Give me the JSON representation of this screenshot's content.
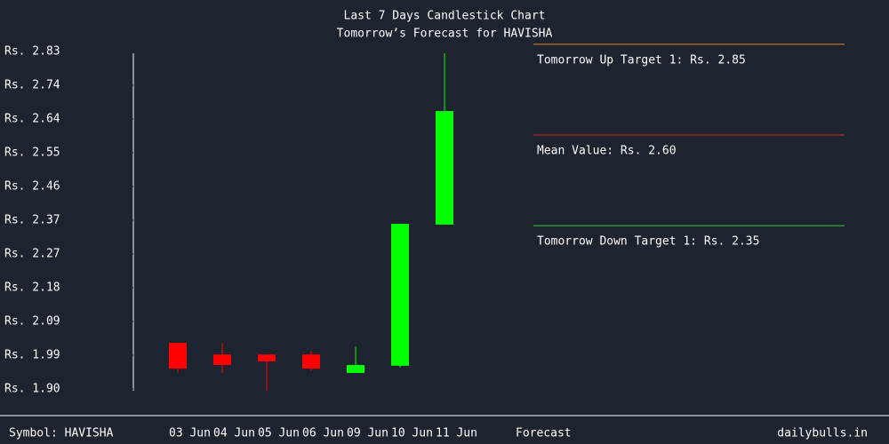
{
  "chart_data": {
    "type": "candlestick",
    "title": "Last 7 Days Candlestick Chart",
    "subtitle": "Tomorrow’s Forecast for HAVISHA",
    "categories": [
      "03 Jun",
      "04 Jun",
      "05 Jun",
      "06 Jun",
      "09 Jun",
      "10 Jun",
      "11 Jun"
    ],
    "open": [
      2.027,
      1.995,
      1.995,
      1.995,
      1.944,
      1.964,
      2.353
    ],
    "high": [
      2.027,
      2.027,
      1.995,
      2.005,
      2.017,
      2.355,
      2.825
    ],
    "low": [
      1.946,
      1.944,
      1.895,
      1.951,
      1.944,
      1.959,
      2.353
    ],
    "close": [
      1.956,
      1.966,
      1.976,
      1.956,
      1.966,
      2.355,
      2.666
    ],
    "up_color": "#00ff00",
    "down_color": "#ff0000",
    "ylim": [
      1.9,
      2.83
    ],
    "yticks": [
      {
        "value": 2.83,
        "label": "Rs. 2.83"
      },
      {
        "value": 2.737,
        "label": "Rs. 2.74"
      },
      {
        "value": 2.644,
        "label": "Rs. 2.64"
      },
      {
        "value": 2.551,
        "label": "Rs. 2.55"
      },
      {
        "value": 2.458,
        "label": "Rs. 2.46"
      },
      {
        "value": 2.365,
        "label": "Rs. 2.37"
      },
      {
        "value": 2.272,
        "label": "Rs. 2.27"
      },
      {
        "value": 2.179,
        "label": "Rs. 2.18"
      },
      {
        "value": 2.086,
        "label": "Rs. 2.09"
      },
      {
        "value": 1.993,
        "label": "Rs. 1.99"
      },
      {
        "value": 1.9,
        "label": "Rs. 1.90"
      }
    ],
    "forecast": [
      {
        "label": "Tomorrow Up Target 1: Rs. 2.85",
        "value": 2.85,
        "color": "#e8892a"
      },
      {
        "label": "Mean Value: Rs. 2.60",
        "value": 2.6,
        "color": "#e02020"
      },
      {
        "label": "Tomorrow Down Target 1: Rs. 2.35",
        "value": 2.35,
        "color": "#30d030"
      }
    ]
  },
  "footer": {
    "symbol": "Symbol: HAVISHA",
    "forecast": "Forecast",
    "source": "dailybulls.in"
  }
}
